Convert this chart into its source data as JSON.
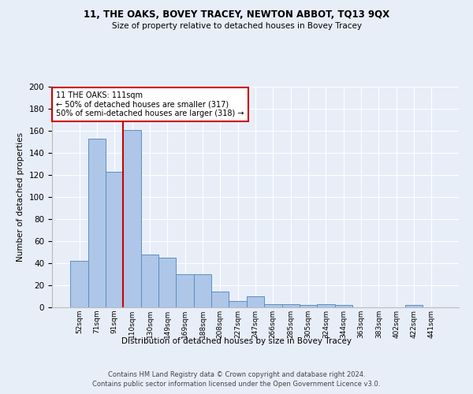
{
  "title1": "11, THE OAKS, BOVEY TRACEY, NEWTON ABBOT, TQ13 9QX",
  "title2": "Size of property relative to detached houses in Bovey Tracey",
  "xlabel": "Distribution of detached houses by size in Bovey Tracey",
  "ylabel": "Number of detached properties",
  "categories": [
    "52sqm",
    "71sqm",
    "91sqm",
    "110sqm",
    "130sqm",
    "149sqm",
    "169sqm",
    "188sqm",
    "208sqm",
    "227sqm",
    "247sqm",
    "266sqm",
    "285sqm",
    "305sqm",
    "324sqm",
    "344sqm",
    "363sqm",
    "383sqm",
    "402sqm",
    "422sqm",
    "441sqm"
  ],
  "values": [
    42,
    153,
    123,
    161,
    48,
    45,
    30,
    30,
    14,
    6,
    10,
    3,
    3,
    2,
    3,
    2,
    0,
    0,
    0,
    2,
    0
  ],
  "bar_color": "#aec6e8",
  "bar_edge_color": "#5a8fc0",
  "property_line_x": 3,
  "property_label": "11 THE OAKS: 111sqm",
  "annotation_line1": "← 50% of detached houses are smaller (317)",
  "annotation_line2": "50% of semi-detached houses are larger (318) →",
  "annotation_box_color": "#ffffff",
  "annotation_box_edge": "#cc0000",
  "vline_color": "#cc0000",
  "ylim": [
    0,
    200
  ],
  "yticks": [
    0,
    20,
    40,
    60,
    80,
    100,
    120,
    140,
    160,
    180,
    200
  ],
  "footer1": "Contains HM Land Registry data © Crown copyright and database right 2024.",
  "footer2": "Contains public sector information licensed under the Open Government Licence v3.0.",
  "bg_color": "#e8eef8",
  "plot_bg_color": "#e8eef8"
}
